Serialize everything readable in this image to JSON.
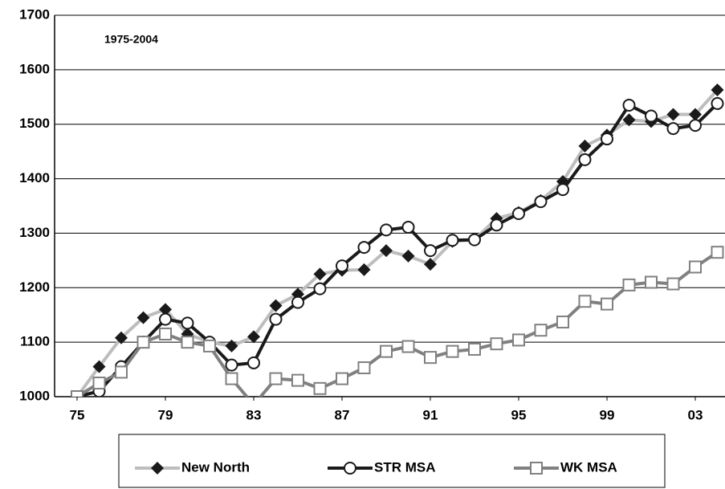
{
  "chart_data": {
    "type": "line",
    "annotation": "1975-2004",
    "categories": [
      "75",
      null,
      null,
      null,
      "79",
      null,
      null,
      null,
      "83",
      null,
      null,
      null,
      "87",
      null,
      null,
      null,
      "91",
      null,
      null,
      null,
      "95",
      null,
      null,
      null,
      "99",
      null,
      null,
      null,
      "03",
      null
    ],
    "ylim": [
      1000,
      1700
    ],
    "yticks": [
      1000,
      1100,
      1200,
      1300,
      1400,
      1500,
      1600,
      1700
    ],
    "grid": true,
    "legend": "bottom",
    "series": [
      {
        "name": "New North",
        "color": "#bdbdbd",
        "marker": "diamond",
        "marker_color": "#1a1a1a",
        "values": [
          1000,
          1055,
          1108,
          1145,
          1160,
          1115,
          1100,
          1093,
          1110,
          1167,
          1188,
          1225,
          1232,
          1233,
          1268,
          1258,
          1243,
          1285,
          1288,
          1327,
          1338,
          1360,
          1395,
          1460,
          1480,
          1508,
          1505,
          1518,
          1518,
          1563
        ]
      },
      {
        "name": "STR MSA",
        "color": "#1a1a1a",
        "marker": "circle",
        "marker_color": "#1a1a1a",
        "values": [
          1000,
          1010,
          1055,
          1100,
          1142,
          1135,
          1100,
          1058,
          1062,
          1142,
          1173,
          1198,
          1240,
          1274,
          1306,
          1311,
          1268,
          1287,
          1288,
          1315,
          1336,
          1358,
          1380,
          1435,
          1473,
          1535,
          1515,
          1492,
          1498,
          1538
        ]
      },
      {
        "name": "WK MSA",
        "color": "#808080",
        "marker": "square",
        "marker_color": "#808080",
        "values": [
          1000,
          1025,
          1045,
          1100,
          1115,
          1100,
          1093,
          1033,
          985,
          1033,
          1030,
          1015,
          1033,
          1053,
          1083,
          1092,
          1072,
          1083,
          1087,
          1097,
          1104,
          1122,
          1137,
          1175,
          1170,
          1205,
          1210,
          1207,
          1238,
          1265
        ]
      }
    ]
  }
}
